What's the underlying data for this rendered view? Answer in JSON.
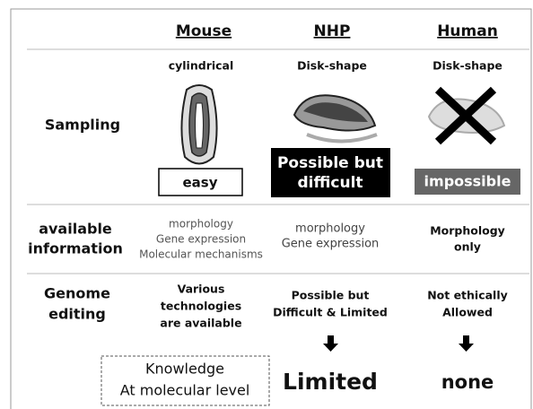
{
  "columns": [
    "Mouse",
    "NHP",
    "Human"
  ],
  "sampling": {
    "label": "Sampling",
    "shapes": [
      "cylindrical",
      "Disk-shape",
      "Disk-shape"
    ],
    "outcomes": [
      [
        "easy"
      ],
      [
        "Possible but",
        "difficult"
      ],
      [
        "impossible"
      ]
    ]
  },
  "information": {
    "label": [
      "available",
      "information"
    ],
    "cells": [
      [
        "morphology",
        "Gene expression",
        "Molecular mechanisms"
      ],
      [
        "morphology",
        "Gene expression"
      ],
      [
        "Morphology",
        "only"
      ]
    ]
  },
  "genome_editing": {
    "label": [
      "Genome",
      "editing"
    ],
    "cells": [
      [
        "Various",
        "technologies",
        "are available"
      ],
      [
        "Possible but",
        "Difficult & Limited"
      ],
      [
        "Not ethically",
        "Allowed"
      ]
    ]
  },
  "conclusion": [
    [
      "Knowledge",
      "At molecular level"
    ],
    [
      "Limited"
    ],
    [
      "none"
    ]
  ]
}
